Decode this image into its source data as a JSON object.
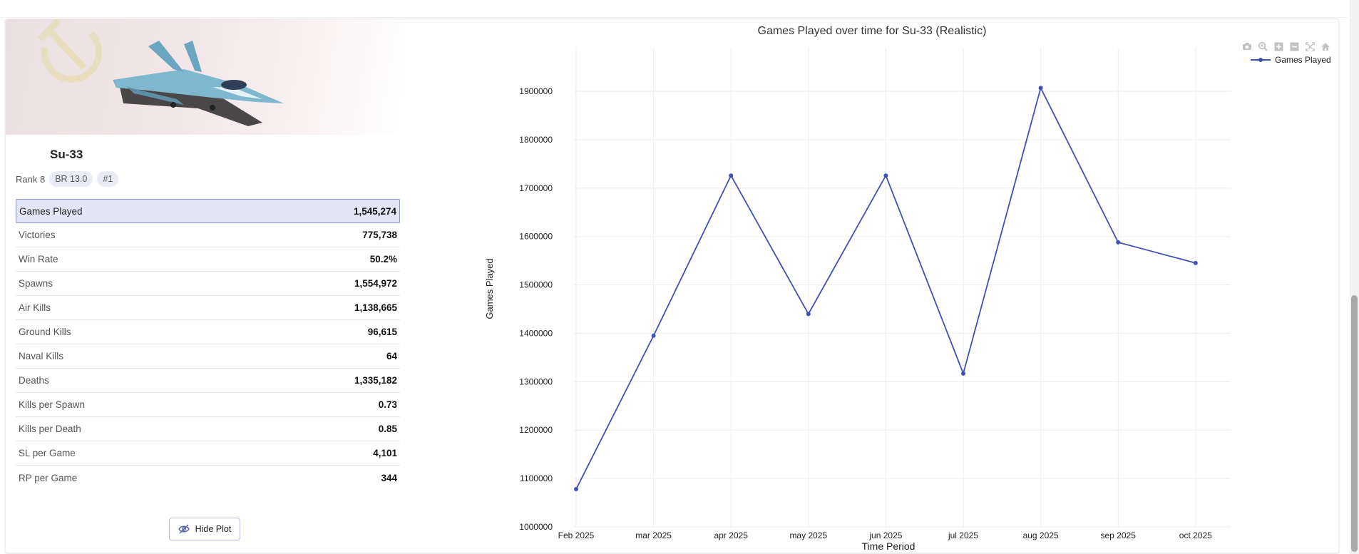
{
  "vehicle": {
    "name": "Su-33",
    "rank": "Rank 8",
    "br": "BR 13.0",
    "position": "#1"
  },
  "stats": [
    {
      "label": "Games Played",
      "value": "1,545,274"
    },
    {
      "label": "Victories",
      "value": "775,738"
    },
    {
      "label": "Win Rate",
      "value": "50.2%"
    },
    {
      "label": "Spawns",
      "value": "1,554,972"
    },
    {
      "label": "Air Kills",
      "value": "1,138,665"
    },
    {
      "label": "Ground Kills",
      "value": "96,615"
    },
    {
      "label": "Naval Kills",
      "value": "64"
    },
    {
      "label": "Deaths",
      "value": "1,335,182"
    },
    {
      "label": "Kills per Spawn",
      "value": "0.73"
    },
    {
      "label": "Kills per Death",
      "value": "0.85"
    },
    {
      "label": "SL per Game",
      "value": "4,101"
    },
    {
      "label": "RP per Game",
      "value": "344"
    }
  ],
  "hide_plot_label": "Hide Plot",
  "modebar_icons": [
    "camera-icon",
    "zoom-icon",
    "zoom-in-icon",
    "zoom-out-icon",
    "autoscale-icon",
    "home-icon"
  ],
  "colors": {
    "series": "#3f51b5",
    "highlight": "#e3e6f7"
  },
  "chart_data": {
    "type": "line",
    "title": "Games Played over time for Su-33 (Realistic)",
    "xlabel": "Time Period",
    "ylabel": "Games Played",
    "categories": [
      "Feb 2025",
      "mar 2025",
      "apr 2025",
      "may 2025",
      "jun 2025",
      "jul 2025",
      "aug 2025",
      "sep 2025",
      "oct 2025"
    ],
    "series": [
      {
        "name": "Games Played",
        "values": [
          1078000,
          1395000,
          1726000,
          1440000,
          1726000,
          1317000,
          1907000,
          1588000,
          1545274
        ]
      }
    ],
    "yticks": [
      "1000000",
      "1100000",
      "1200000",
      "1300000",
      "1400000",
      "1500000",
      "1600000",
      "1700000",
      "1800000",
      "1900000"
    ],
    "ylim": [
      1000000,
      1990000
    ],
    "grid": true,
    "legend": "top-right"
  }
}
